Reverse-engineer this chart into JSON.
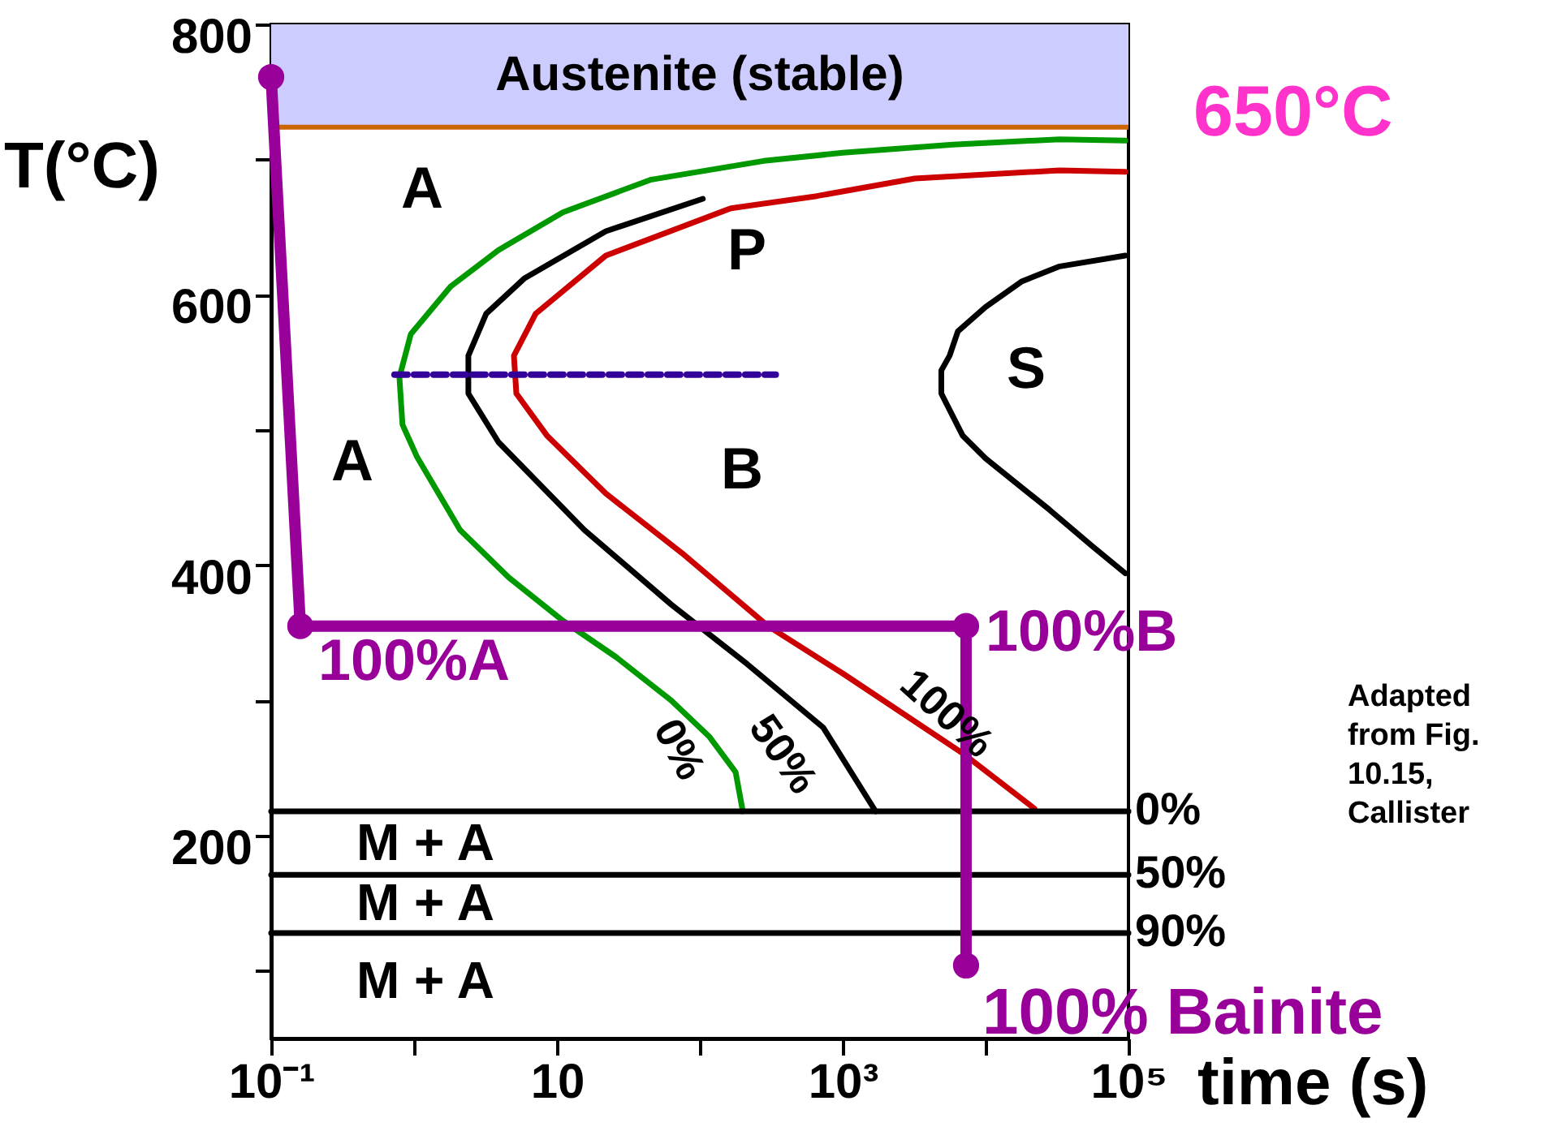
{
  "chart_data": {
    "type": "line",
    "xlabel": "time (s)",
    "ylabel": "T(°C)",
    "log": "x",
    "grid": false,
    "xlim": [
      0.1,
      100000
    ],
    "ylim": [
      50,
      800
    ],
    "xticks": [
      {
        "value": 0.1,
        "label": "10⁻¹"
      },
      {
        "value": 1,
        "label": null
      },
      10,
      {
        "value": 100,
        "label": null
      },
      {
        "value": 1000,
        "label": "10³"
      },
      {
        "value": 10000,
        "label": null
      },
      {
        "value": 100000,
        "label": "10⁵"
      }
    ],
    "yticks": [
      {
        "value": 100,
        "label": null
      },
      200,
      {
        "value": 300,
        "label": null
      },
      400,
      {
        "value": 500,
        "label": null
      },
      600,
      {
        "value": 700,
        "label": null
      },
      800
    ],
    "bands": [
      {
        "axis": "y",
        "from": 724,
        "to": 800,
        "label": "Austenite (stable)",
        "color": "#ccccff"
      }
    ],
    "ref_lines": [
      {
        "axis": "y",
        "value": 724,
        "label": "650°C",
        "color": "#cc6600"
      }
    ],
    "series": [
      {
        "color": "#009900",
        "x": [
          95000,
          33000,
          5900,
          1000,
          280,
          45,
          11,
          3.9,
          1.8,
          0.95,
          0.79,
          0.83,
          1.05,
          2.1,
          4.6,
          11,
          26,
          63,
          117,
          178,
          200
        ],
        "values": [
          714,
          715,
          711,
          705,
          699,
          685,
          661,
          633,
          606,
          571,
          539,
          504,
          480,
          426,
          391,
          359,
          332,
          300,
          273,
          247,
          218
        ]
      },
      {
        "color": "#000000",
        "x": [
          105,
          22,
          5.9,
          3.2,
          2.4,
          2.4,
          3.9,
          15.6,
          63,
          214,
          730,
          1700
        ],
        "values": [
          671,
          647,
          612,
          586,
          555,
          527,
          491,
          426,
          371,
          327,
          280,
          218
        ]
      },
      {
        "color": "#cc0000",
        "x": [
          95000,
          33000,
          3200,
          660,
          165,
          22,
          7.1,
          5.0,
          5.2,
          8.5,
          22,
          75,
          300,
          1000,
          6900,
          22000
        ],
        "values": [
          691,
          692,
          686,
          673,
          664,
          629,
          586,
          555,
          527,
          496,
          453,
          409,
          355,
          320,
          261,
          220
        ]
      },
      {
        "color": "#000000",
        "x": [
          95000,
          33000,
          18000,
          10000,
          6400,
          5600,
          4900,
          4900,
          6900,
          10000,
          28000,
          56000,
          95000
        ],
        "values": [
          629,
          621,
          610,
          591,
          573,
          555,
          544,
          527,
          496,
          479,
          441,
          414,
          394
        ]
      },
      {
        "name": "0%",
        "color": "#000000",
        "x": [
          0.1,
          100000
        ],
        "values": [
          218,
          218
        ]
      },
      {
        "name": "50%",
        "color": "#000000",
        "x": [
          0.1,
          100000
        ],
        "values": [
          171,
          171
        ]
      },
      {
        "name": "90%",
        "color": "#000000",
        "x": [
          0.1,
          100000
        ],
        "values": [
          128,
          128
        ]
      },
      {
        "color": "#330099",
        "line_style": "dashed",
        "x": [
          0.73,
          340
        ],
        "values": [
          541,
          541
        ]
      },
      {
        "color": "#990099",
        "marker": "circle",
        "x": [
          0.1,
          0.16,
          7300,
          7300
        ],
        "values": [
          761,
          355,
          355,
          104
        ]
      }
    ],
    "annotations": [
      "A",
      "A",
      "P",
      "B",
      "S",
      "M + A",
      "M + A",
      "M + A",
      "0%",
      "50%",
      "100%",
      "100%A",
      "100%B",
      "100% Bainite",
      "Adapted from Fig. 10.15, Callister"
    ]
  }
}
